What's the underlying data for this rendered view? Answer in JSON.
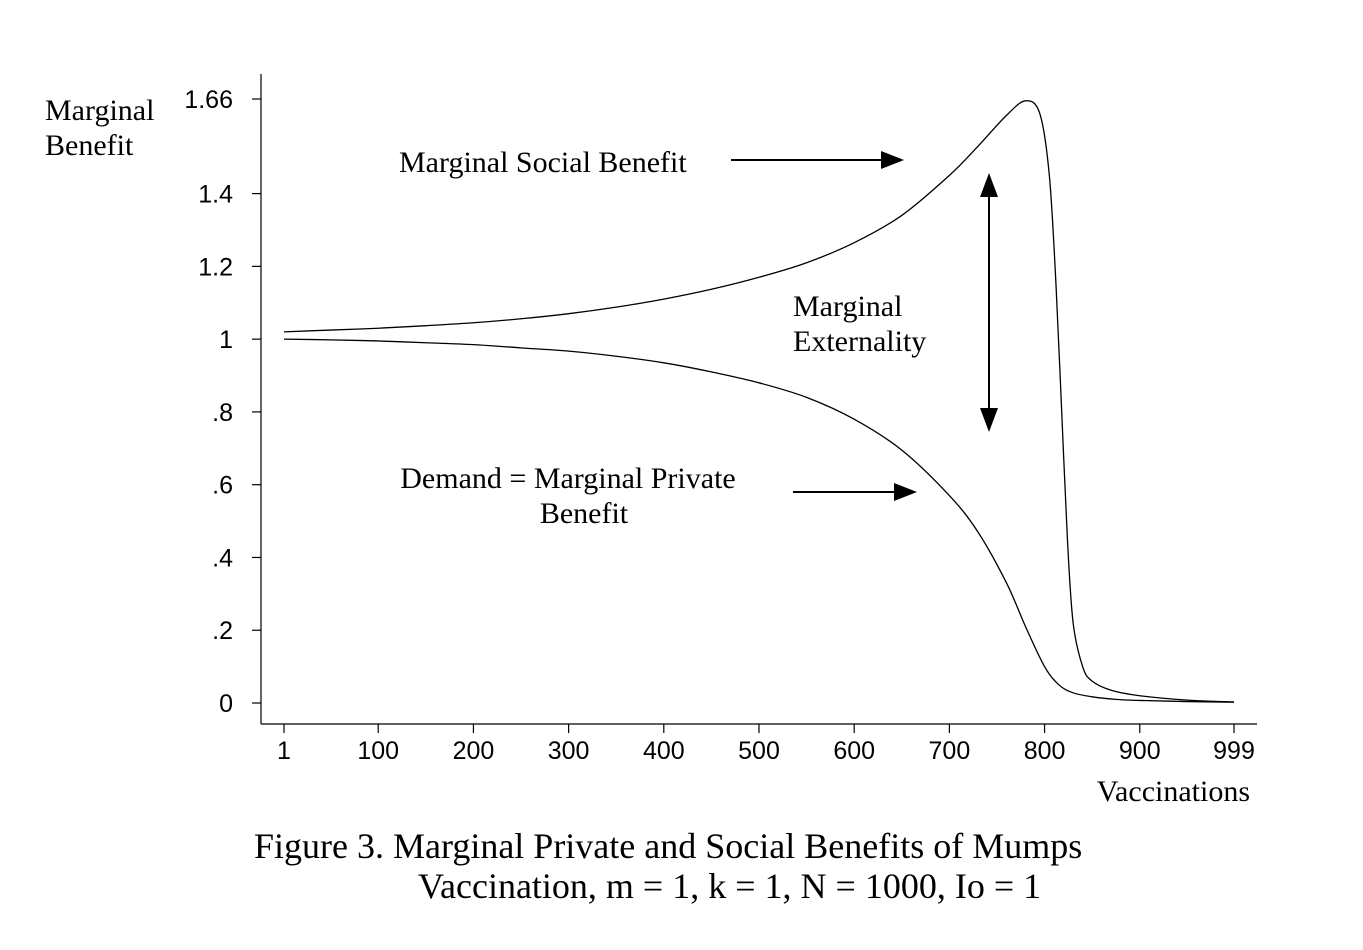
{
  "chart_data": {
    "type": "line",
    "ylabel_lines": [
      "Marginal",
      "Benefit"
    ],
    "xlabel": "Vaccinations",
    "x_ticks": [
      1,
      100,
      200,
      300,
      400,
      500,
      600,
      700,
      800,
      900,
      999
    ],
    "y_ticks": [
      {
        "value": 0,
        "label": "0"
      },
      {
        "value": 0.2,
        "label": ".2"
      },
      {
        "value": 0.4,
        "label": ".4"
      },
      {
        "value": 0.6,
        "label": ".6"
      },
      {
        "value": 0.8,
        "label": ".8"
      },
      {
        "value": 1.0,
        "label": "1"
      },
      {
        "value": 1.2,
        "label": "1.2"
      },
      {
        "value": 1.4,
        "label": "1.4"
      },
      {
        "value": 1.66,
        "label": "1.66"
      }
    ],
    "xlim": [
      1,
      999
    ],
    "ylim": [
      0,
      1.66
    ],
    "grid": false,
    "legend": "none",
    "series": [
      {
        "name": "Marginal Social Benefit",
        "x": [
          1,
          50,
          100,
          150,
          200,
          250,
          300,
          350,
          400,
          450,
          500,
          550,
          600,
          650,
          700,
          730,
          760,
          780,
          795,
          805,
          812,
          818,
          824,
          830,
          840,
          850,
          870,
          900,
          950,
          999
        ],
        "y": [
          1.02,
          1.025,
          1.03,
          1.037,
          1.045,
          1.056,
          1.07,
          1.088,
          1.11,
          1.137,
          1.17,
          1.21,
          1.265,
          1.34,
          1.45,
          1.53,
          1.615,
          1.655,
          1.62,
          1.45,
          1.15,
          0.8,
          0.45,
          0.22,
          0.1,
          0.06,
          0.035,
          0.02,
          0.008,
          0.003
        ]
      },
      {
        "name": "Demand = Marginal Private Benefit",
        "x": [
          1,
          50,
          100,
          150,
          200,
          250,
          300,
          350,
          400,
          450,
          500,
          550,
          600,
          650,
          700,
          730,
          760,
          780,
          800,
          815,
          830,
          850,
          875,
          900,
          950,
          999
        ],
        "y": [
          1.0,
          0.998,
          0.995,
          0.99,
          0.985,
          0.976,
          0.967,
          0.953,
          0.935,
          0.91,
          0.88,
          0.84,
          0.78,
          0.695,
          0.57,
          0.47,
          0.33,
          0.21,
          0.1,
          0.05,
          0.028,
          0.017,
          0.01,
          0.007,
          0.004,
          0.002
        ]
      }
    ],
    "annotations": {
      "social_label": "Marginal Social Benefit",
      "externality_lines": [
        "Marginal",
        "Externality"
      ],
      "private_lines": [
        "Demand = Marginal Private",
        "Benefit"
      ]
    },
    "caption_lines": [
      "Figure 3.  Marginal Private and Social Benefits of Mumps",
      "Vaccination, m = 1, k = 1, N = 1000, Io = 1"
    ]
  }
}
